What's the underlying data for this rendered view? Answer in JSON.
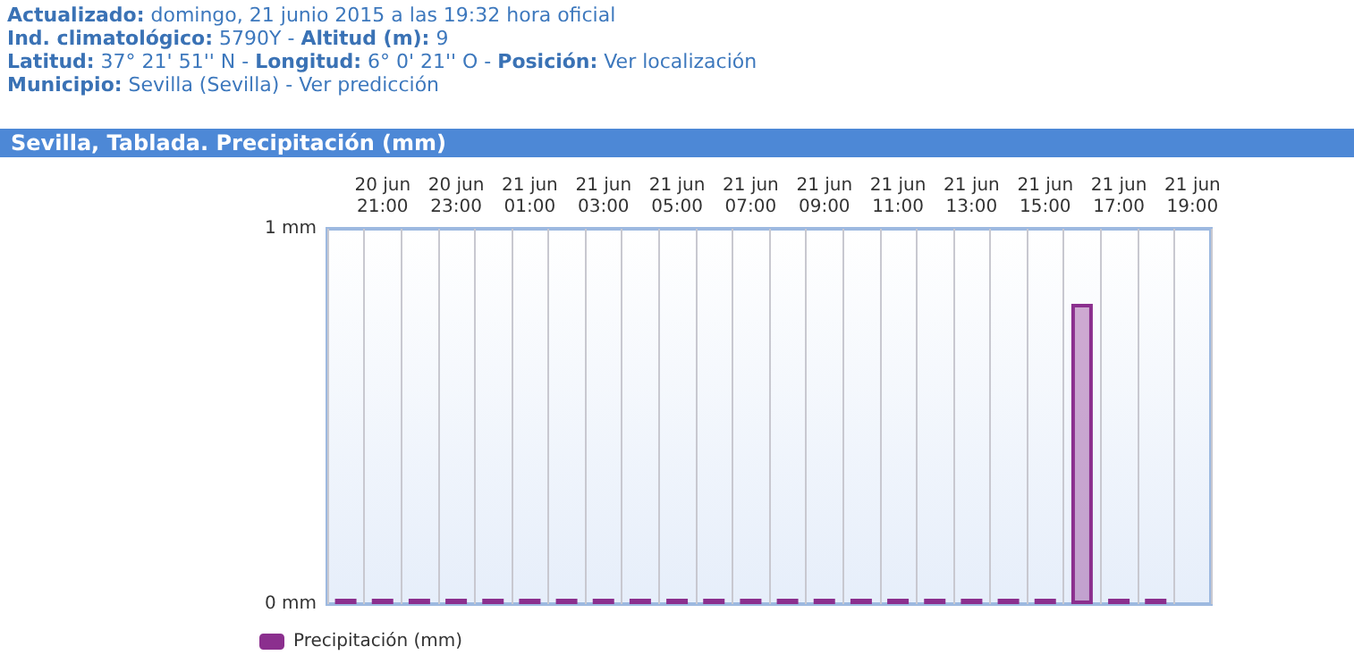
{
  "chart_data": {
    "type": "bar",
    "title": "Sevilla, Tablada. Precipitación (mm)",
    "annotations": [
      "Actualizado: domingo, 21 junio 2015 a las 19:32 hora oficial",
      "Ind. climatológico: 5790Y - Altitud (m): 9",
      "Latitud: 37° 21' 51'' N - Longitud: 6° 0' 21'' O - Posición: Ver localización",
      "Municipio: Sevilla (Sevilla) - Ver predicción"
    ],
    "categories": [
      null,
      "20 jun\n21:00",
      null,
      "20 jun\n23:00",
      null,
      "21 jun\n01:00",
      null,
      "21 jun\n03:00",
      null,
      "21 jun\n05:00",
      null,
      "21 jun\n07:00",
      null,
      "21 jun\n09:00",
      null,
      "21 jun\n11:00",
      null,
      "21 jun\n13:00",
      null,
      "21 jun\n15:00",
      null,
      "21 jun\n17:00",
      null,
      "21 jun\n19:00"
    ],
    "series": [
      {
        "name": "Precipitación (mm)",
        "color": "#8b2f8e",
        "values": [
          0,
          0,
          0,
          0,
          0,
          0,
          0,
          0,
          0,
          0,
          0,
          0,
          0,
          0,
          0,
          0,
          0,
          0,
          0,
          0,
          0.8,
          0,
          0,
          null
        ]
      }
    ],
    "ylim": [
      0,
      1
    ],
    "yticks": [
      {
        "value": 0,
        "label": "0 mm"
      },
      {
        "value": 1,
        "label": "1 mm"
      }
    ],
    "grid": "x",
    "legend": "bottom left"
  }
}
